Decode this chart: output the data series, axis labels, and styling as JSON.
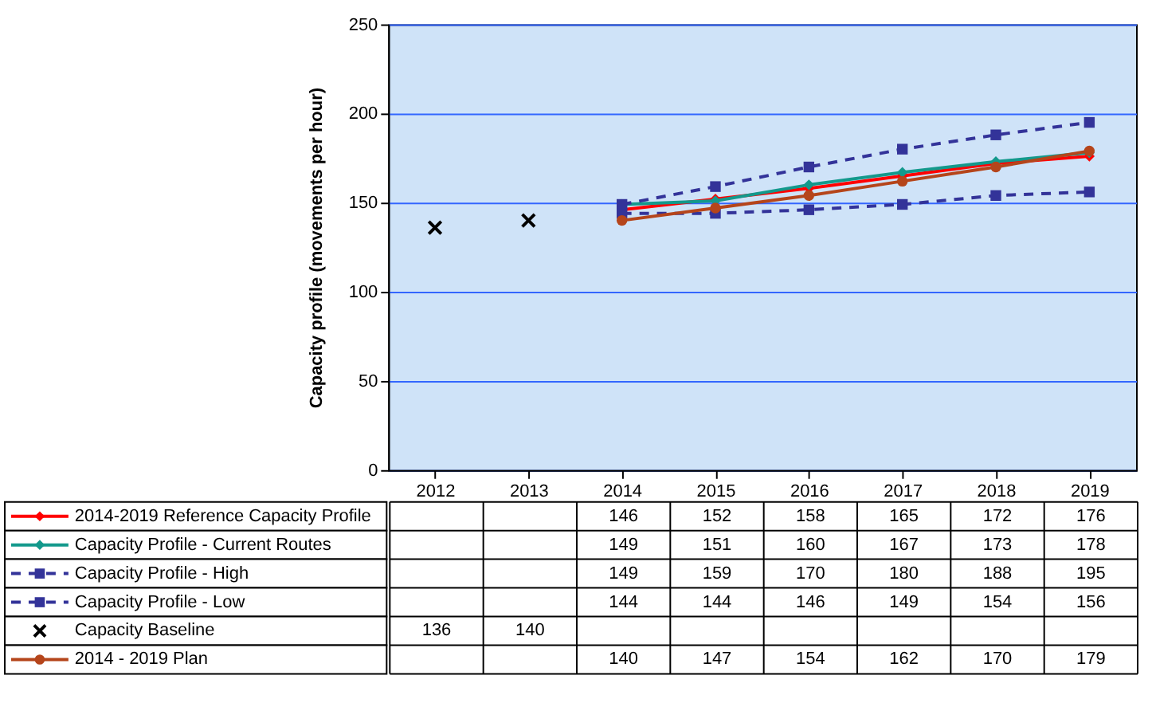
{
  "chart_data": {
    "type": "line",
    "ylabel": "Capacity profile (movements per hour)",
    "categories": [
      "2012",
      "2013",
      "2014",
      "2015",
      "2016",
      "2017",
      "2018",
      "2019"
    ],
    "ylim": [
      0,
      250
    ],
    "yticks": [
      0,
      50,
      100,
      150,
      200,
      250
    ],
    "grid": "y",
    "legend": "bottom left",
    "data_labels": true,
    "series": [
      {
        "name": "2014-2019 Reference Capacity Profile",
        "color": "#ff0000",
        "marker": "diamond",
        "line_style": "solid",
        "values": [
          null,
          null,
          146,
          152,
          158,
          165,
          172,
          176
        ]
      },
      {
        "name": "Capacity Profile - Current Routes",
        "color": "#13998c",
        "marker": "diamond",
        "line_style": "solid",
        "values": [
          null,
          null,
          149,
          151,
          160,
          167,
          173,
          178
        ]
      },
      {
        "name": "Capacity Profile - High",
        "color": "#333399",
        "marker": "square",
        "line_style": "dashed",
        "values": [
          null,
          null,
          149,
          159,
          170,
          180,
          188,
          195
        ]
      },
      {
        "name": "Capacity Profile - Low",
        "color": "#333399",
        "marker": "square",
        "line_style": "dashed",
        "values": [
          null,
          null,
          144,
          144,
          146,
          149,
          154,
          156
        ]
      },
      {
        "name": "Capacity Baseline",
        "type": "scatter",
        "color": "#000000",
        "marker": "cross",
        "values": [
          136,
          140,
          null,
          null,
          null,
          null,
          null,
          null
        ]
      },
      {
        "name": "2014 - 2019 Plan",
        "color": "#b5451b",
        "marker": "circle",
        "line_style": "solid",
        "values": [
          null,
          null,
          140,
          147,
          154,
          162,
          170,
          179
        ]
      }
    ]
  }
}
